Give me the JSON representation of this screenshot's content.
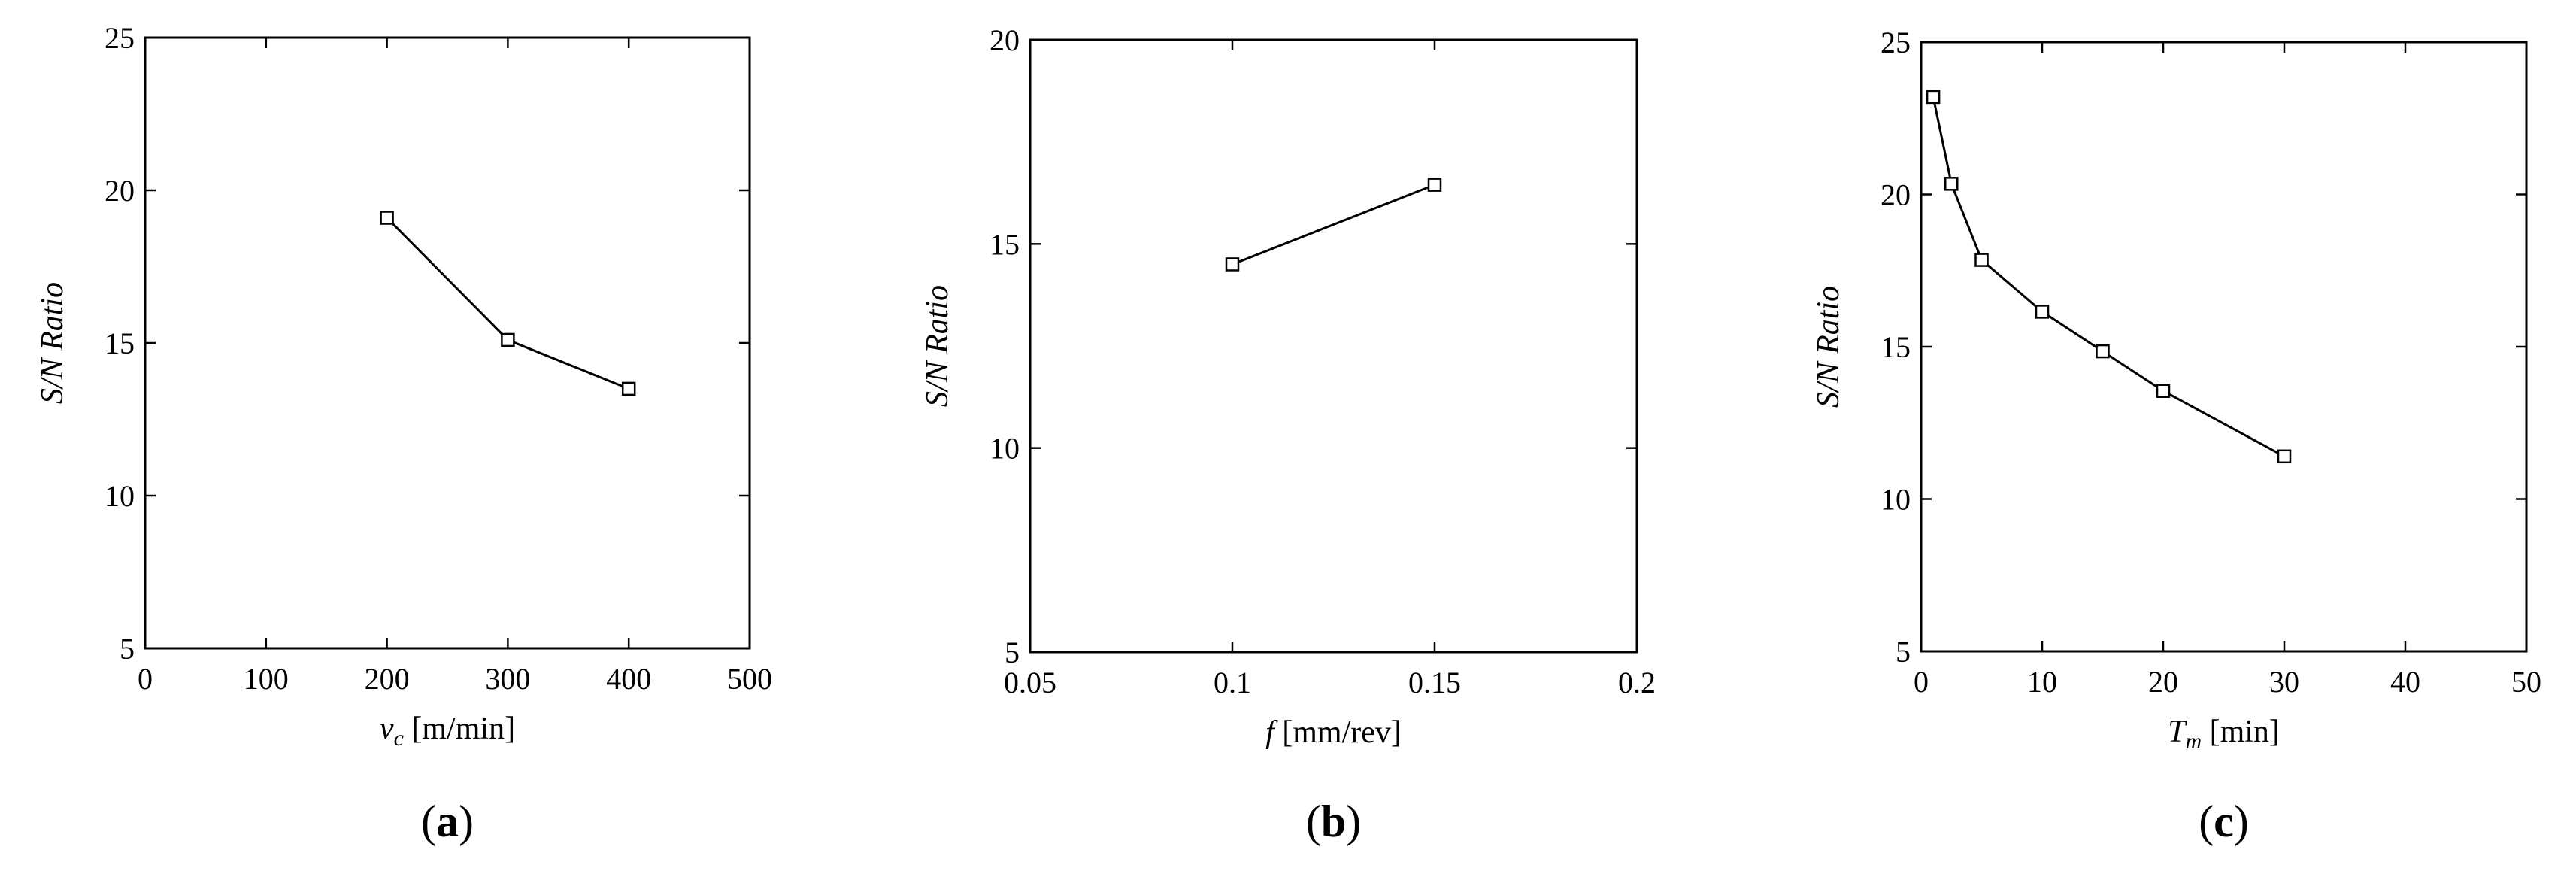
{
  "chart_data": [
    {
      "type": "line",
      "panel_label": "a",
      "xlabel_symbol": "v",
      "xlabel_sub": "c",
      "xlabel_unit": " [m/min]",
      "ylabel": "S/N Ratio",
      "xlim": [
        0,
        500
      ],
      "ylim": [
        5,
        25
      ],
      "xticks": [
        0,
        100,
        200,
        300,
        400,
        500
      ],
      "yticks": [
        5,
        10,
        15,
        20,
        25
      ],
      "x": [
        200,
        300,
        400
      ],
      "y": [
        19.1,
        15.1,
        13.5
      ],
      "marker": "square",
      "grid": false
    },
    {
      "type": "line",
      "panel_label": "b",
      "xlabel_symbol": "f",
      "xlabel_sub": "",
      "xlabel_unit": " [mm/rev]",
      "ylabel": "S/N Ratio",
      "xlim": [
        0.05,
        0.2
      ],
      "ylim": [
        5,
        20
      ],
      "xticks": [
        0.05,
        0.1,
        0.15,
        0.2
      ],
      "yticks": [
        5,
        10,
        15,
        20
      ],
      "x": [
        0.1,
        0.15
      ],
      "y": [
        14.5,
        16.45
      ],
      "marker": "square",
      "grid": false
    },
    {
      "type": "line",
      "panel_label": "c",
      "xlabel_symbol": "T",
      "xlabel_sub": "m",
      "xlabel_unit": " [min]",
      "ylabel": "S/N Ratio",
      "xlim": [
        0,
        50
      ],
      "ylim": [
        5,
        25
      ],
      "xticks": [
        0,
        10,
        20,
        30,
        40,
        50
      ],
      "yticks": [
        5,
        10,
        15,
        20,
        25
      ],
      "x": [
        1,
        2.5,
        5,
        10,
        15,
        20,
        30
      ],
      "y": [
        23.2,
        20.35,
        17.85,
        16.15,
        14.85,
        13.55,
        11.4
      ],
      "marker": "square",
      "grid": false
    }
  ]
}
